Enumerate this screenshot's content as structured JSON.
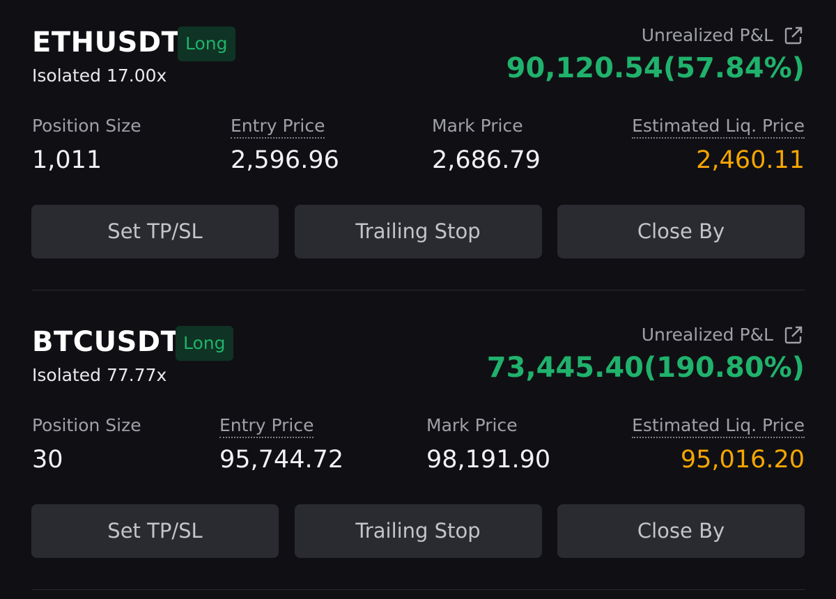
{
  "positions": [
    {
      "symbol": "ETHUSDT",
      "side": "Long",
      "margin": "Isolated 17.00x",
      "pnl_label": "Unrealized P&L",
      "pnl": "90,120.54(57.84%)",
      "fields": [
        {
          "label": "Position Size",
          "value": "1,011"
        },
        {
          "label": "Entry Price",
          "value": "2,596.96"
        },
        {
          "label": "Mark Price",
          "value": "2,686.79"
        },
        {
          "label": "Estimated Liq. Price",
          "value": "2,460.11"
        }
      ],
      "buttons": [
        "Set TP/SL",
        "Trailing Stop",
        "Close By"
      ]
    },
    {
      "symbol": "BTCUSDT",
      "side": "Long",
      "margin": "Isolated 77.77x",
      "pnl_label": "Unrealized P&L",
      "pnl": "73,445.40(190.80%)",
      "fields": [
        {
          "label": "Position Size",
          "value": "30"
        },
        {
          "label": "Entry Price",
          "value": "95,744.72"
        },
        {
          "label": "Mark Price",
          "value": "98,191.90"
        },
        {
          "label": "Estimated Liq. Price",
          "value": "95,016.20"
        }
      ],
      "buttons": [
        "Set TP/SL",
        "Trailing Stop",
        "Close By"
      ]
    }
  ]
}
